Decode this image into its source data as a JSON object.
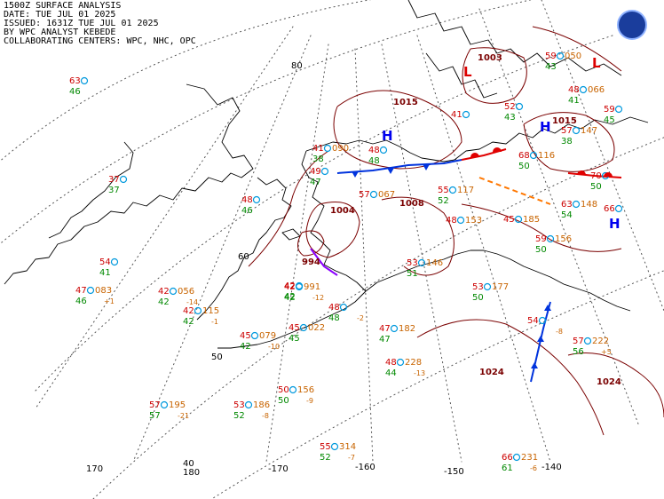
{
  "header": {
    "line1": "1500Z SURFACE ANALYSIS",
    "line2": "DATE: TUE JUL 01 2025",
    "line3": "ISSUED: 1631Z TUE JUL 01 2025",
    "line4": "BY WPC ANALYST KEBEDE",
    "line5": "COLLABORATING CENTERS: WPC, NHC, OPC"
  },
  "logo": {
    "icon": "noaa-logo",
    "color": "#1a3d9c"
  },
  "colors": {
    "coast": "#000000",
    "grid": "#555555",
    "isobar": "#7a0000",
    "warm": "#e00000",
    "cold": "#0033dd",
    "occluded": "#8b00ff",
    "trough": "#ff7700",
    "temp": "#cc0000",
    "dew": "#008800",
    "pressure": "#c86400",
    "high": "#0000ee",
    "low": "#dd0000",
    "station": "#0099dd"
  },
  "graticule_labels": {
    "lat": [
      "80",
      "60",
      "50"
    ],
    "lon": [
      "170",
      "180",
      "-170",
      "-160",
      "-150",
      "-140",
      "40"
    ]
  },
  "isobar_labels": [
    "1003",
    "1015",
    "1015",
    "1008",
    "1004",
    "994",
    "1024",
    "1024"
  ],
  "pressure_centers": [
    {
      "type": "H",
      "label": "H"
    },
    {
      "type": "H",
      "label": "H"
    },
    {
      "type": "H",
      "label": "H"
    },
    {
      "type": "L",
      "label": "L"
    },
    {
      "type": "L",
      "label": "L"
    }
  ],
  "stations": [
    {
      "t": "63",
      "d": "46",
      "p": ""
    },
    {
      "t": "37",
      "d": "37",
      "p": ""
    },
    {
      "t": "54",
      "d": "41",
      "p": ""
    },
    {
      "t": "47",
      "d": "46",
      "p": "083",
      "tend": "+1"
    },
    {
      "t": "42",
      "d": "42",
      "p": "056",
      "tend": "-14"
    },
    {
      "t": "42",
      "d": "42",
      "p": "115",
      "tend": "-1"
    },
    {
      "t": "45",
      "d": "42",
      "p": "079",
      "tend": "-10"
    },
    {
      "t": "57",
      "d": "57",
      "p": "195",
      "tend": "-21"
    },
    {
      "t": "53",
      "d": "52",
      "p": "186",
      "tend": "-8"
    },
    {
      "t": "50",
      "d": "50",
      "p": "156",
      "tend": "-9"
    },
    {
      "t": "55",
      "d": "52",
      "p": "314",
      "tend": "-7"
    },
    {
      "t": "66",
      "d": "61",
      "p": "231",
      "tend": "-6"
    },
    {
      "t": "45",
      "d": "45",
      "p": "022",
      "tend": ""
    },
    {
      "t": "42",
      "d": "42",
      "p": "",
      "tend": ""
    },
    {
      "t": "42",
      "d": "42",
      "p": "991",
      "tend": "-12"
    },
    {
      "t": "48",
      "d": "46",
      "p": "",
      "tend": ""
    },
    {
      "t": "48",
      "d": "48",
      "p": "",
      "tend": "-2"
    },
    {
      "t": "41",
      "d": "38",
      "p": "090",
      "tend": ""
    },
    {
      "t": "49",
      "d": "47",
      "p": "",
      "tend": ""
    },
    {
      "t": "48",
      "d": "48",
      "p": "",
      "tend": ""
    },
    {
      "t": "57",
      "d": "",
      "p": "067",
      "tend": ""
    },
    {
      "t": "55",
      "d": "52",
      "p": "117",
      "tend": ""
    },
    {
      "t": "48",
      "d": "",
      "p": "153",
      "tend": ""
    },
    {
      "t": "53",
      "d": "51",
      "p": "146",
      "tend": ""
    },
    {
      "t": "53",
      "d": "50",
      "p": "177",
      "tend": ""
    },
    {
      "t": "47",
      "d": "47",
      "p": "182",
      "tend": ""
    },
    {
      "t": "48",
      "d": "44",
      "p": "228",
      "tend": "-13"
    },
    {
      "t": "45",
      "d": "",
      "p": "185",
      "tend": ""
    },
    {
      "t": "59",
      "d": "50",
      "p": "156",
      "tend": ""
    },
    {
      "t": "63",
      "d": "54",
      "p": "148",
      "tend": ""
    },
    {
      "t": "68",
      "d": "50",
      "p": "116",
      "tend": ""
    },
    {
      "t": "70",
      "d": "50",
      "p": "",
      "tend": ""
    },
    {
      "t": "66",
      "d": "",
      "p": "",
      "tend": ""
    },
    {
      "t": "57",
      "d": "56",
      "p": "222",
      "tend": "+5"
    },
    {
      "t": "54",
      "d": "",
      "p": "",
      "tend": "-8"
    },
    {
      "t": "59",
      "d": "43",
      "p": "050",
      "tend": ""
    },
    {
      "t": "48",
      "d": "41",
      "p": "066",
      "tend": ""
    },
    {
      "t": "59",
      "d": "45",
      "p": "",
      "tend": ""
    },
    {
      "t": "57",
      "d": "38",
      "p": "147",
      "tend": ""
    },
    {
      "t": "52",
      "d": "43",
      "p": "",
      "tend": ""
    },
    {
      "t": "41",
      "d": "",
      "p": "",
      "tend": ""
    }
  ]
}
